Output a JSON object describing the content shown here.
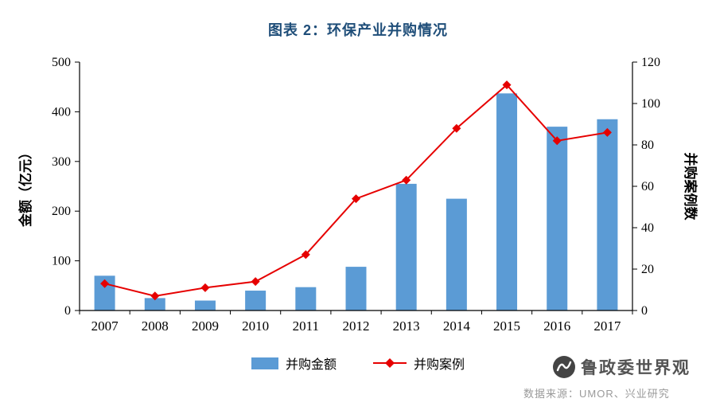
{
  "title": "图表 2：环保产业并购情况",
  "chart_data": {
    "type": "bar",
    "subtype": "bar+line combo, dual axis",
    "categories": [
      "2007",
      "2008",
      "2009",
      "2010",
      "2011",
      "2012",
      "2013",
      "2014",
      "2015",
      "2016",
      "2017"
    ],
    "series": [
      {
        "name": "并购金额",
        "type": "bar",
        "axis": "left",
        "color": "#5b9bd5",
        "values": [
          70,
          25,
          20,
          40,
          47,
          88,
          255,
          225,
          437,
          370,
          385
        ]
      },
      {
        "name": "并购案例",
        "type": "line",
        "axis": "right",
        "color": "#e60000",
        "marker": "diamond",
        "values": [
          13,
          7,
          11,
          14,
          27,
          54,
          63,
          88,
          109,
          82,
          86
        ]
      }
    ],
    "left_axis": {
      "label": "金额（亿元）",
      "min": 0,
      "max": 500,
      "step": 100
    },
    "right_axis": {
      "label": "并购案例数",
      "min": 0,
      "max": 120,
      "step": 20
    },
    "grid": false,
    "legend_position": "bottom-center"
  },
  "footer": {
    "watermark": "鲁政委世界观",
    "source": "数据来源：UMOR、兴业研究"
  },
  "colors": {
    "title": "#1f4e79",
    "bar": "#5b9bd5",
    "line": "#e60000",
    "axis": "#000000",
    "source_text": "#9a9a9a"
  }
}
